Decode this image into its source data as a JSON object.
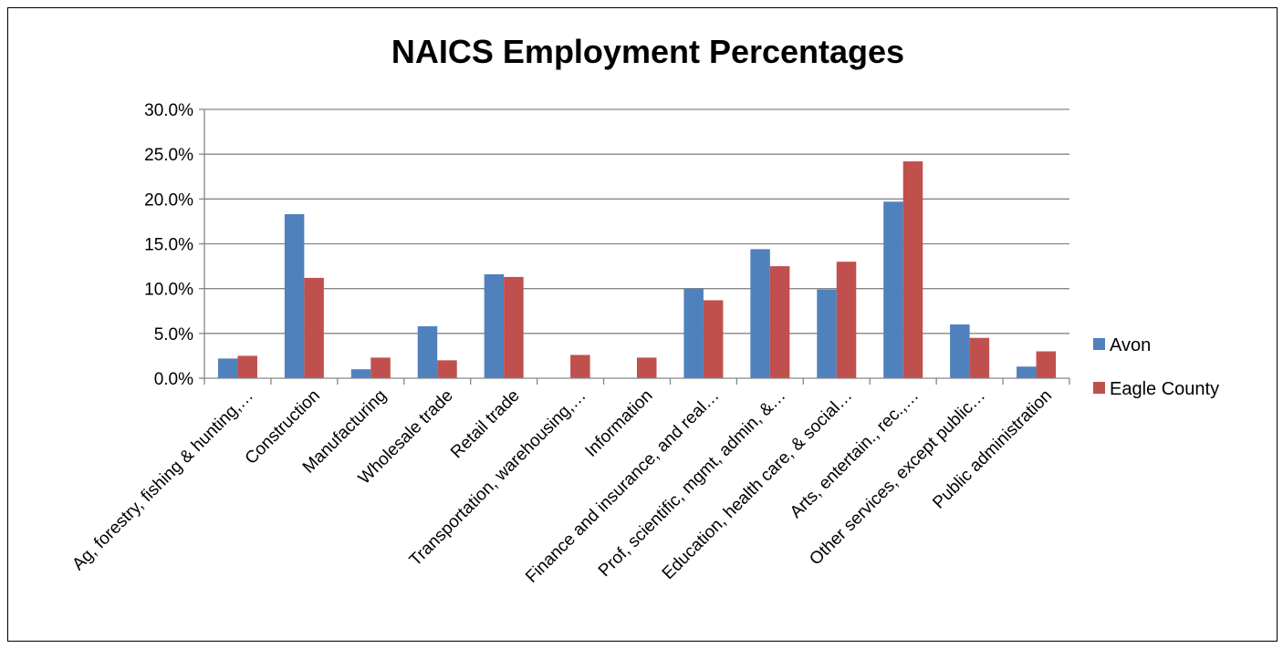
{
  "chart_data": {
    "type": "bar",
    "title": "NAICS Employment Percentages",
    "xlabel": "",
    "ylabel": "",
    "ylim": [
      0,
      30
    ],
    "y_ticks": [
      "0.0%",
      "5.0%",
      "10.0%",
      "15.0%",
      "20.0%",
      "25.0%",
      "30.0%"
    ],
    "grid": true,
    "legend_position": "right",
    "categories": [
      "Ag, forestry, fishing & hunting,…",
      "Construction",
      "Manufacturing",
      "Wholesale trade",
      "Retail trade",
      "Transportation, warehousing,…",
      "Information",
      "Finance and insurance, and real…",
      "Prof, scientific, mgmt, admin, &…",
      "Education, health care, & social…",
      "Arts, entertain., rec.,…",
      "Other services, except public…",
      "Public administration"
    ],
    "series": [
      {
        "name": "Avon",
        "color": "#4F81BD",
        "values": [
          2.2,
          18.3,
          1.0,
          5.8,
          11.6,
          0.0,
          0.0,
          10.0,
          14.4,
          9.9,
          19.7,
          6.0,
          1.3
        ]
      },
      {
        "name": "Eagle County",
        "color": "#C0504D",
        "values": [
          2.5,
          11.2,
          2.3,
          2.0,
          11.3,
          2.6,
          2.3,
          8.7,
          12.5,
          13.0,
          24.2,
          4.5,
          3.0
        ]
      }
    ]
  }
}
